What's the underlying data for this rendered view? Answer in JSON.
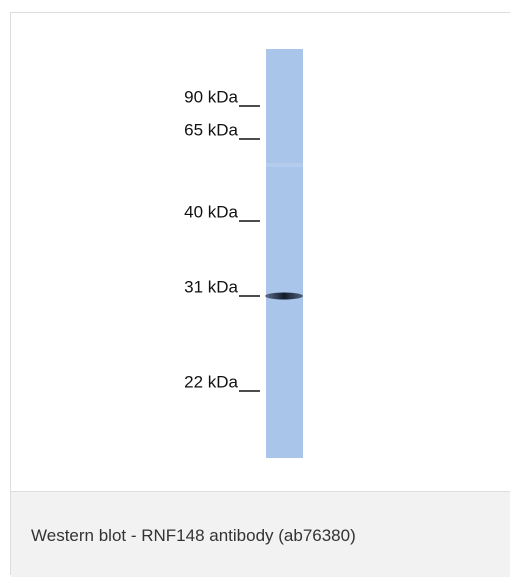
{
  "figure": {
    "markers": [
      "90 kDa",
      "65 kDa",
      "40 kDa",
      "31 kDa",
      "22 kDa"
    ],
    "caption": "Western blot - RNF148 antibody (ab76380)"
  }
}
